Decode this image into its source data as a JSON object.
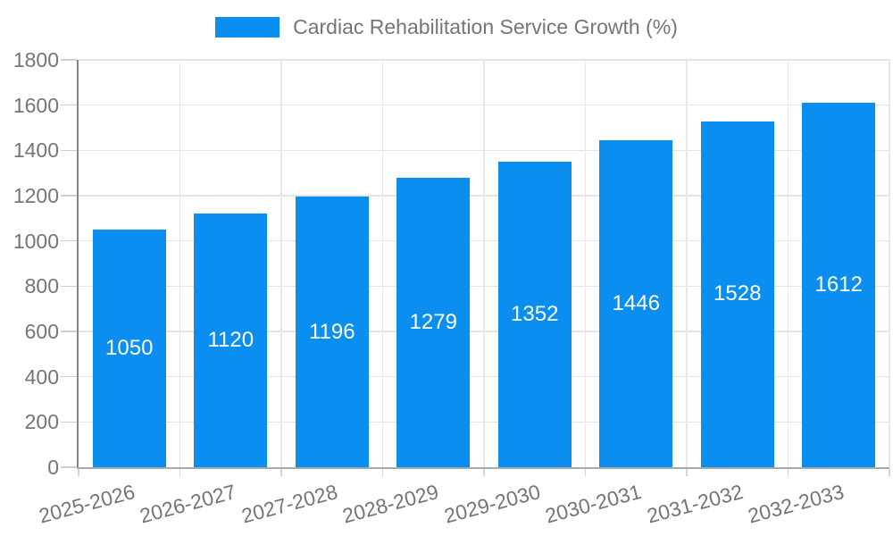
{
  "colors": {
    "bar": "#0a8ff0",
    "grid_h": "#e4e4e4",
    "grid_v": "#e8e8e8",
    "axis_y": "#878787",
    "axis_x": "#a9a9a9",
    "tick": "#cfcfcf",
    "tick_text": "#757575",
    "bar_label": "#ffffff"
  },
  "legend": {
    "label": "Cardiac Rehabilitation Service Growth (%)"
  },
  "chart_data": {
    "type": "bar",
    "title": "Cardiac Rehabilitation Service Growth (%)",
    "categories": [
      "2025-2026",
      "2026-2027",
      "2027-2028",
      "2028-2029",
      "2029-2030",
      "2030-2031",
      "2031-2032",
      "2032-2033"
    ],
    "values": [
      1050,
      1120,
      1196,
      1279,
      1352,
      1446,
      1528,
      1612
    ],
    "xlabel": "",
    "ylabel": "",
    "ylim": [
      0,
      1800
    ],
    "ytick_step": 200,
    "yticks": [
      0,
      200,
      400,
      600,
      800,
      1000,
      1200,
      1400,
      1600,
      1800
    ],
    "grid": true,
    "legend_position": "top-center",
    "value_labels": "inside-center",
    "xlabel_rotation_deg": -15
  }
}
